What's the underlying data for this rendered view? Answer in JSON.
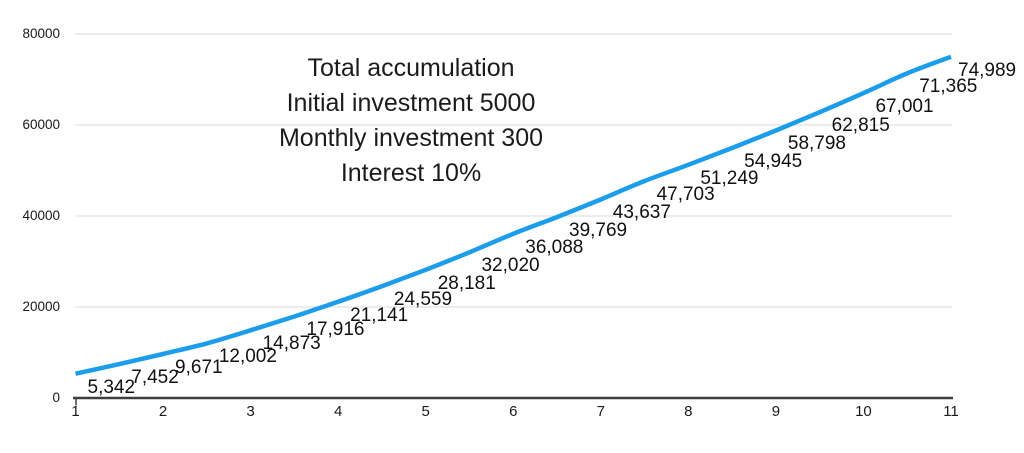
{
  "annotation": {
    "line1": "Total accumulation",
    "line2": "Initial investment 5000",
    "line3": "Monthly investment 300",
    "line4": "Interest 10%"
  },
  "chart_data": {
    "type": "line",
    "title": "Total accumulation",
    "annotation_lines": [
      "Total accumulation",
      "Initial investment 5000",
      "Monthly investment 300",
      "Interest 10%"
    ],
    "x": [
      1,
      1.5,
      2,
      2.5,
      3,
      3.5,
      4,
      4.5,
      5,
      5.5,
      6,
      6.5,
      7,
      7.5,
      8,
      8.5,
      9,
      9.5,
      10,
      10.5,
      11
    ],
    "series": [
      {
        "name": "Total accumulation",
        "values": [
          5342,
          7452,
          9671,
          12002,
          14873,
          17916,
          21141,
          24559,
          28181,
          32020,
          36088,
          39769,
          43637,
          47703,
          51249,
          54945,
          58798,
          62815,
          67001,
          71365,
          74989
        ]
      }
    ],
    "data_labels": [
      "5,342",
      "7,452",
      "9,671",
      "12,002",
      "14,873",
      "17,916",
      "21,141",
      "24,559",
      "28,181",
      "32,020",
      "36,088",
      "39,769",
      "43,637",
      "47,703",
      "51,249",
      "54,945",
      "58,798",
      "62,815",
      "67,001",
      "71,365",
      "74,989"
    ],
    "x_ticks": [
      {
        "v": 1,
        "label": "1"
      },
      {
        "v": 2,
        "label": "2"
      },
      {
        "v": 3,
        "label": "3"
      },
      {
        "v": 4,
        "label": "4"
      },
      {
        "v": 5,
        "label": "5"
      },
      {
        "v": 6,
        "label": "6"
      },
      {
        "v": 7,
        "label": "7"
      },
      {
        "v": 8,
        "label": "8"
      },
      {
        "v": 9,
        "label": "9"
      },
      {
        "v": 10,
        "label": "10"
      },
      {
        "v": 11,
        "label": "11"
      }
    ],
    "y_ticks": [
      {
        "v": 0,
        "label": "0"
      },
      {
        "v": 20000,
        "label": "20000"
      },
      {
        "v": 40000,
        "label": "40000"
      },
      {
        "v": 60000,
        "label": "60000"
      },
      {
        "v": 80000,
        "label": "80000"
      }
    ],
    "xlim": [
      1,
      11
    ],
    "ylim": [
      0,
      80000
    ],
    "grid": "horizontal-only",
    "legend": "none",
    "colors": {
      "line": "#1B9DEB",
      "gridline": "#D8D8D8",
      "axis": "#3E3E3E",
      "text": "#1A1A1A",
      "background": "#FFFFFF"
    }
  }
}
